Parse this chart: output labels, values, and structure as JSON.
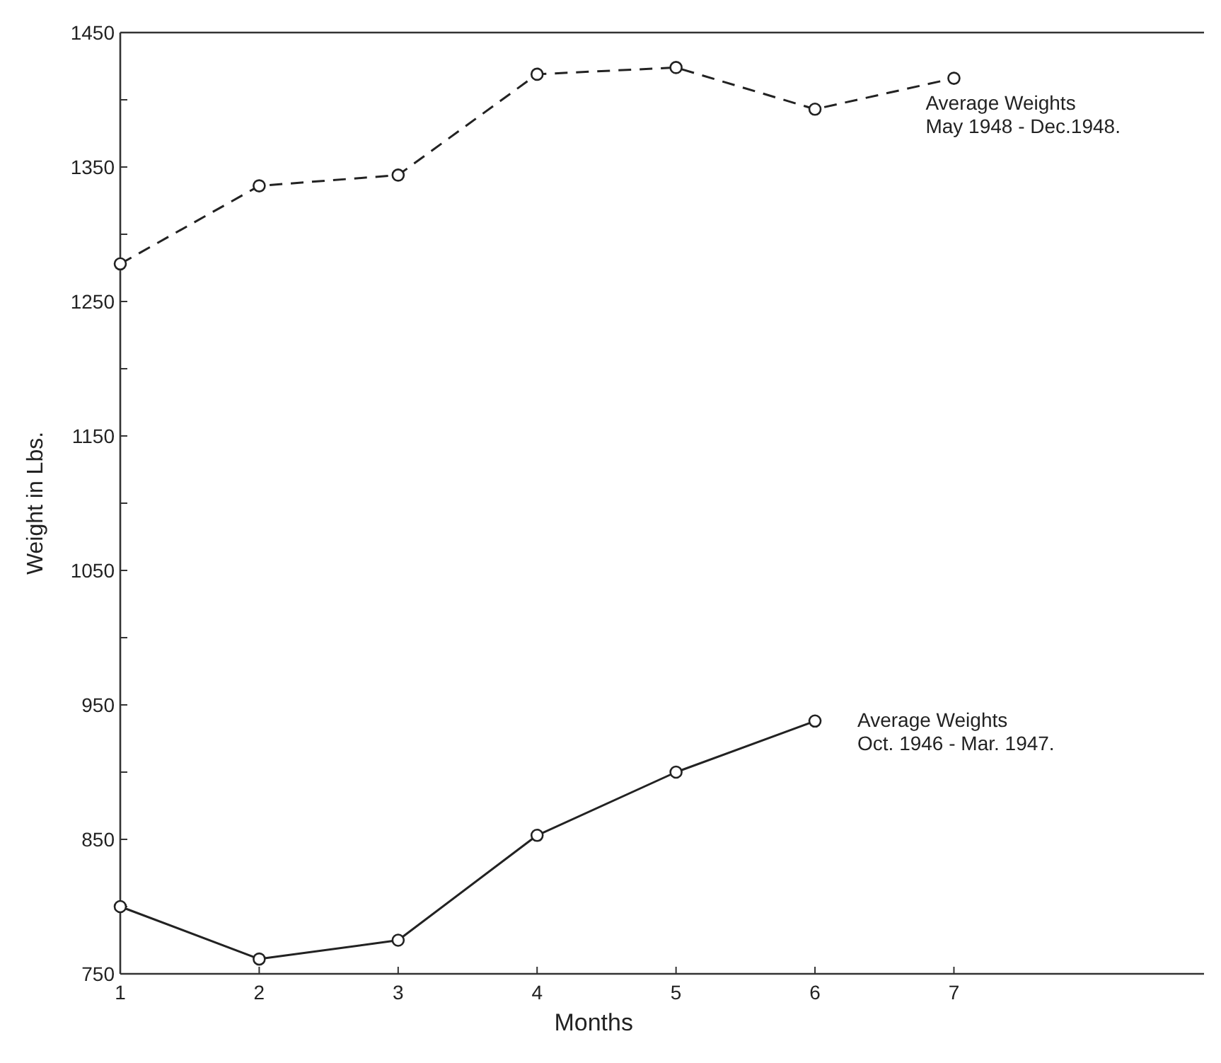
{
  "chart_data": {
    "type": "line",
    "xlabel": "Months",
    "ylabel": "Weight in Lbs.",
    "x": [
      1,
      2,
      3,
      4,
      5,
      6,
      7
    ],
    "xlim": [
      1,
      8.8
    ],
    "xticks": [
      1,
      2,
      3,
      4,
      5,
      6,
      7
    ],
    "ylim": [
      750,
      1450
    ],
    "yticks": [
      750,
      {
        "value": 800,
        "label": null
      },
      850,
      {
        "value": 900,
        "label": null
      },
      950,
      {
        "value": 1000,
        "label": null
      },
      1050,
      {
        "value": 1100,
        "label": null
      },
      1150,
      {
        "value": 1200,
        "label": null
      },
      1250,
      {
        "value": 1300,
        "label": null
      },
      1350,
      {
        "value": 1400,
        "label": null
      },
      1450
    ],
    "marker": "circle",
    "grid": false,
    "series": [
      {
        "color": "#222222",
        "line_style": "dashed",
        "values": [
          1278,
          1336,
          1344,
          1419,
          1424,
          1393,
          1416
        ]
      },
      {
        "color": "#222222",
        "line_style": "solid",
        "x": [
          1,
          2,
          3,
          4,
          5,
          6
        ],
        "values": [
          800,
          761,
          775,
          853,
          900,
          938
        ]
      }
    ],
    "annotations": [
      "Average Weights\nMay 1948 - Dec.1948.",
      "Average Weights\nOct. 1946 - Mar. 1947."
    ]
  }
}
